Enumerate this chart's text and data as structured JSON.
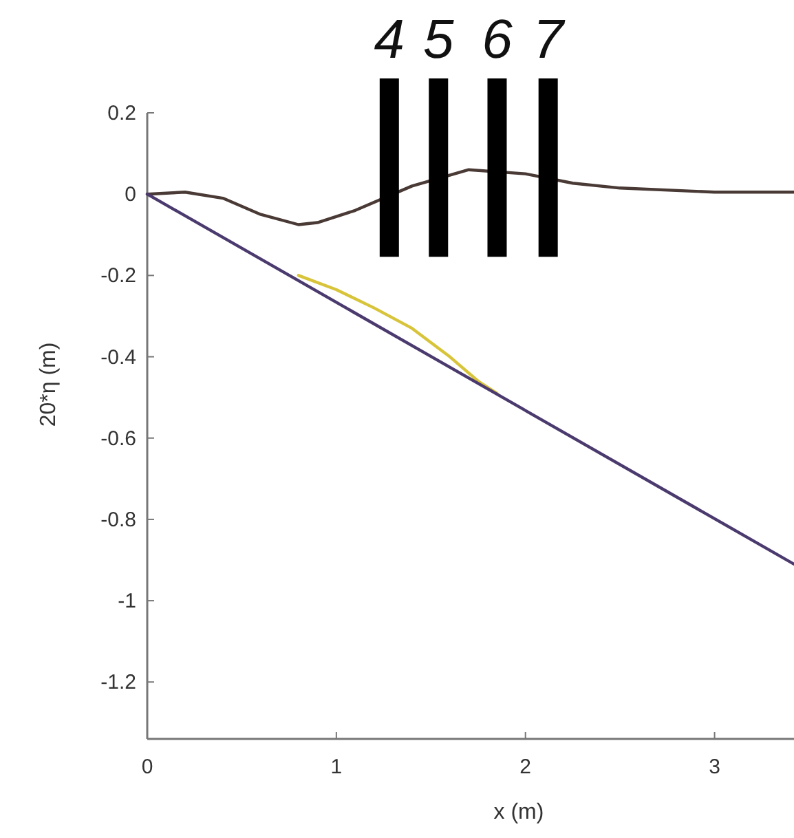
{
  "chart_data": {
    "type": "line",
    "xlabel": "x (m)",
    "ylabel": "20*η (m)",
    "xlim": [
      0,
      3.42
    ],
    "ylim": [
      -1.34,
      0.2
    ],
    "xticks": [
      0,
      1,
      2,
      3
    ],
    "yticks": [
      0.2,
      0,
      -0.2,
      -0.4,
      -0.6,
      -0.8,
      -1,
      -1.2
    ],
    "grid": false,
    "series": [
      {
        "color": "#4a3a36",
        "x": [
          0,
          0.2,
          0.4,
          0.6,
          0.8,
          0.9,
          1.1,
          1.4,
          1.7,
          2.0,
          2.25,
          2.5,
          3.0,
          3.42
        ],
        "values": [
          0,
          0.005,
          -0.01,
          -0.05,
          -0.075,
          -0.07,
          -0.04,
          0.02,
          0.06,
          0.05,
          0.027,
          0.015,
          0.005,
          0.005
        ]
      },
      {
        "color": "#d8c43a",
        "x": [
          0.8,
          1.0,
          1.2,
          1.4,
          1.6,
          1.75,
          1.85
        ],
        "values": [
          -0.2,
          -0.235,
          -0.28,
          -0.33,
          -0.4,
          -0.46,
          -0.49
        ]
      },
      {
        "color": "#4b3a6e",
        "x": [
          0,
          3.42
        ],
        "values": [
          0,
          -0.91
        ]
      }
    ],
    "ref_lines": [
      {
        "axis": "x",
        "value": 1.28,
        "color": "#000000"
      },
      {
        "axis": "x",
        "value": 1.54,
        "color": "#000000"
      },
      {
        "axis": "x",
        "value": 1.85,
        "color": "#000000"
      },
      {
        "axis": "x",
        "value": 2.12,
        "color": "#000000"
      }
    ],
    "annotations": [
      "4",
      "5",
      "6",
      "7"
    ]
  }
}
